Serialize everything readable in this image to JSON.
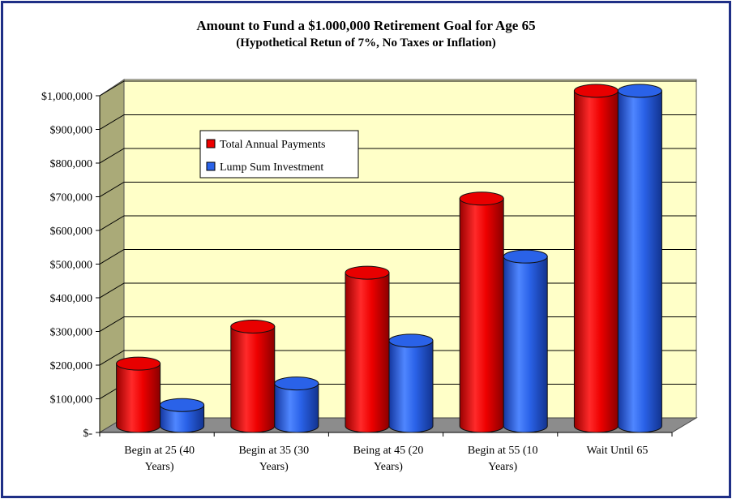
{
  "chart_data": {
    "type": "bar",
    "title": "Amount to Fund a $1.000,000 Retirement Goal for Age 65",
    "subtitle": "(Hypothetical Retun of 7%, No Taxes or Inflation)",
    "xlabel": "",
    "ylabel": "",
    "ylim": [
      0,
      1000000
    ],
    "y_ticks": [
      {
        "value": 0,
        "label": "$-"
      },
      {
        "value": 100000,
        "label": "$100,000"
      },
      {
        "value": 200000,
        "label": "$200,000"
      },
      {
        "value": 300000,
        "label": "$300,000"
      },
      {
        "value": 400000,
        "label": "$400,000"
      },
      {
        "value": 500000,
        "label": "$500,000"
      },
      {
        "value": 600000,
        "label": "$600,000"
      },
      {
        "value": 700000,
        "label": "$700,000"
      },
      {
        "value": 800000,
        "label": "$800,000"
      },
      {
        "value": 900000,
        "label": "$900,000"
      },
      {
        "value": 1000000,
        "label": "$1,000,000"
      }
    ],
    "categories": [
      [
        "Begin at 25 (40",
        "Years)"
      ],
      [
        "Begin at 35 (30",
        "Years)"
      ],
      [
        "Being at 45 (20",
        "Years)"
      ],
      [
        "Begin at 55 (10",
        "Years)"
      ],
      [
        "Wait Until 65"
      ]
    ],
    "series": [
      {
        "name": "Total Annual Payments",
        "color": "#ee0000",
        "values": [
          190000,
          300000,
          460000,
          680000,
          1000000
        ]
      },
      {
        "name": "Lump Sum Investment",
        "color": "#2a62e8",
        "values": [
          67000,
          131000,
          258000,
          508000,
          1000000
        ]
      }
    ],
    "grid": true,
    "legend_position": "upper-left",
    "background_color": "#ffffc8",
    "frame_color": "#1f2f86"
  }
}
